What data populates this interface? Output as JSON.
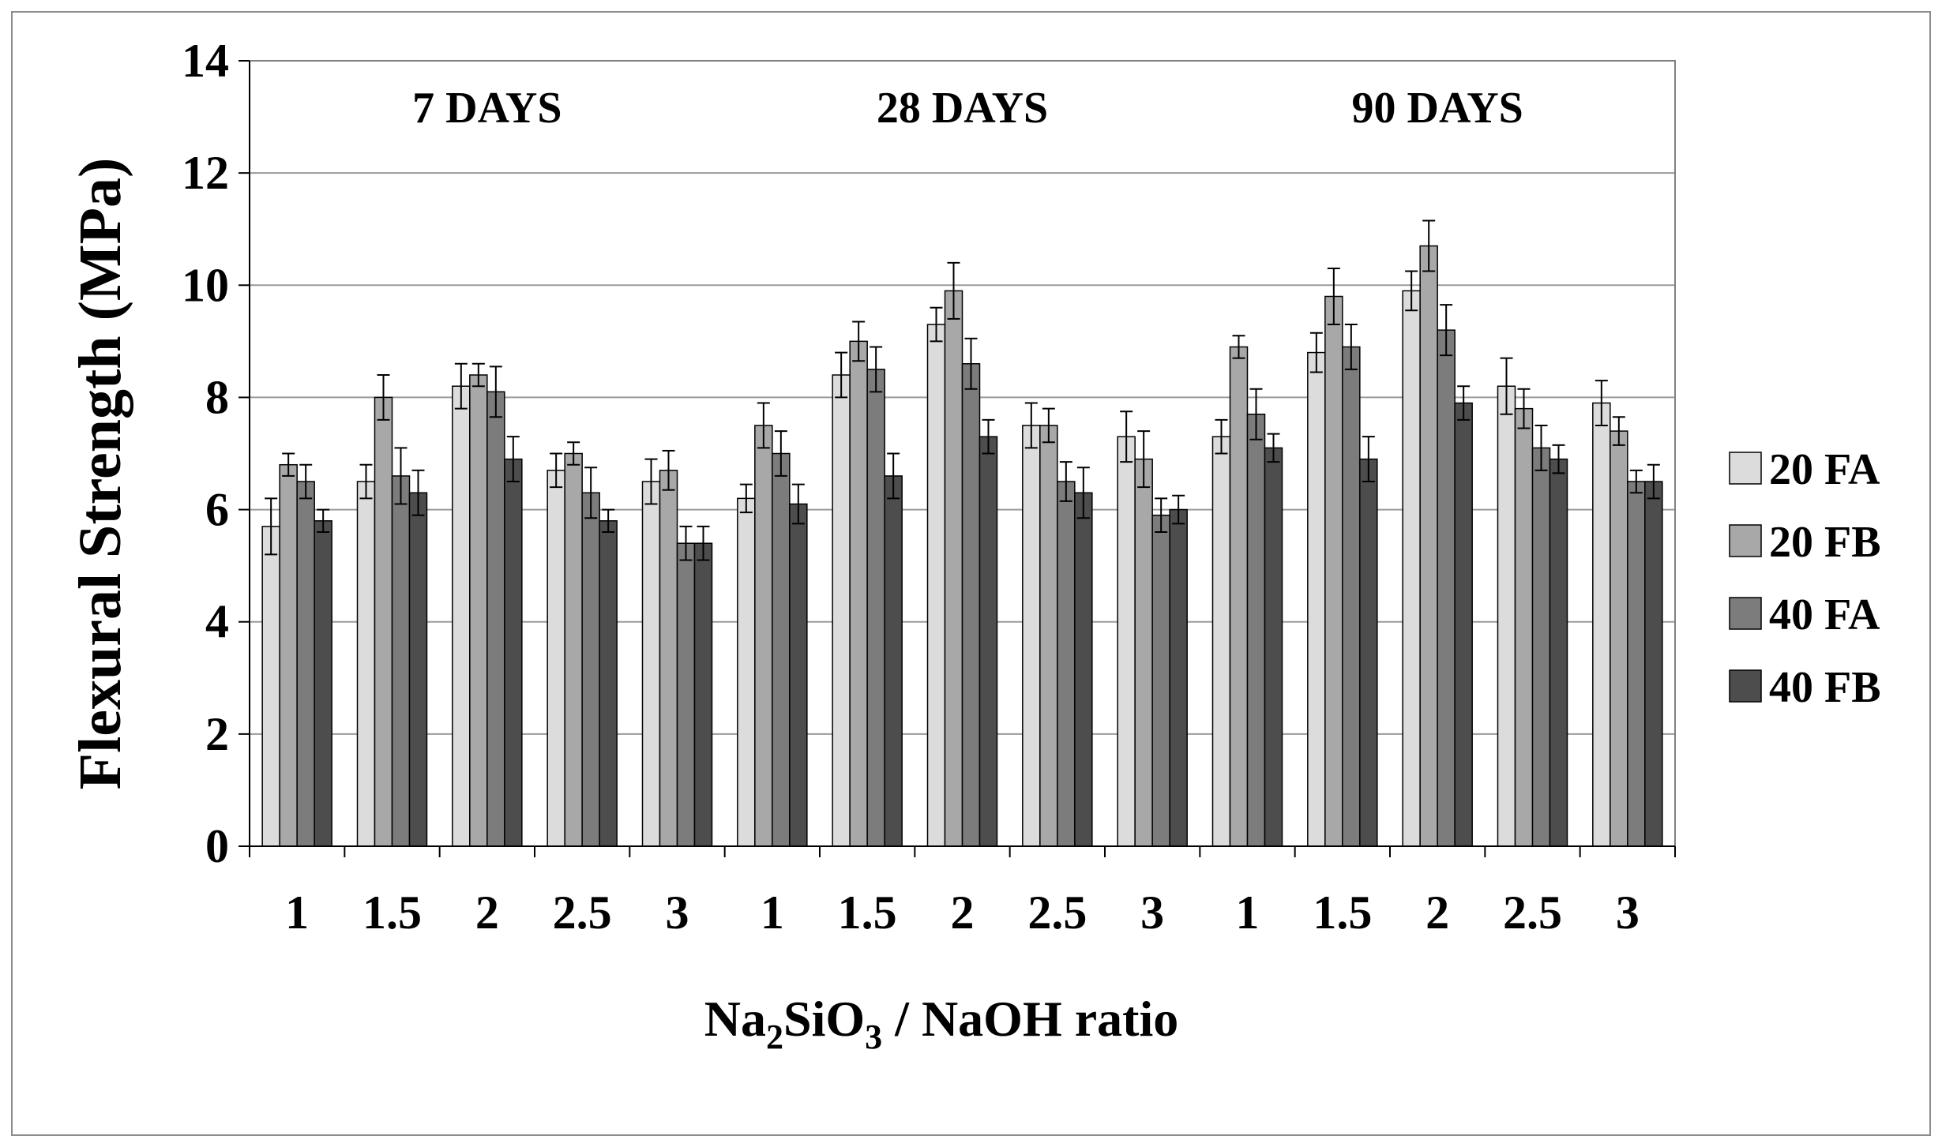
{
  "chart_data": {
    "type": "bar",
    "ylabel": "Flexural Strength (MPa)",
    "xlabel": {
      "parts": [
        "Na",
        "2",
        "SiO",
        "3",
        " / NaOH ratio"
      ]
    },
    "ylim": [
      0,
      14
    ],
    "yticks": [
      0,
      2,
      4,
      6,
      8,
      10,
      12,
      14
    ],
    "grid": true,
    "legend_position": "right",
    "groups": [
      {
        "label": "7 DAYS",
        "categories": [
          "1",
          "1.5",
          "2",
          "2.5",
          "3"
        ]
      },
      {
        "label": "28 DAYS",
        "categories": [
          "1",
          "1.5",
          "2",
          "2.5",
          "3"
        ]
      },
      {
        "label": "90 DAYS",
        "categories": [
          "1",
          "1.5",
          "2",
          "2.5",
          "3"
        ]
      }
    ],
    "series": [
      {
        "name": "20 FA",
        "color": "#dcdcdc",
        "values": [
          5.7,
          6.5,
          8.2,
          6.7,
          6.5,
          6.2,
          8.4,
          9.3,
          7.5,
          7.3,
          7.3,
          8.8,
          9.9,
          8.2,
          7.9
        ],
        "errors": [
          0.5,
          0.3,
          0.4,
          0.3,
          0.4,
          0.25,
          0.4,
          0.3,
          0.4,
          0.45,
          0.3,
          0.35,
          0.35,
          0.5,
          0.4
        ]
      },
      {
        "name": "20 FB",
        "color": "#a8a8a8",
        "values": [
          6.8,
          8.0,
          8.4,
          7.0,
          6.7,
          7.5,
          9.0,
          9.9,
          7.5,
          6.9,
          8.9,
          9.8,
          10.7,
          7.8,
          7.4
        ],
        "errors": [
          0.2,
          0.4,
          0.2,
          0.2,
          0.35,
          0.4,
          0.35,
          0.5,
          0.3,
          0.5,
          0.2,
          0.5,
          0.45,
          0.35,
          0.25
        ]
      },
      {
        "name": "40 FA",
        "color": "#7c7c7c",
        "values": [
          6.5,
          6.6,
          8.1,
          6.3,
          5.4,
          7.0,
          8.5,
          8.6,
          6.5,
          5.9,
          7.7,
          8.9,
          9.2,
          7.1,
          6.5
        ],
        "errors": [
          0.3,
          0.5,
          0.45,
          0.45,
          0.3,
          0.4,
          0.4,
          0.45,
          0.35,
          0.3,
          0.45,
          0.4,
          0.45,
          0.4,
          0.2
        ]
      },
      {
        "name": "40 FB",
        "color": "#4d4d4d",
        "values": [
          5.8,
          6.3,
          6.9,
          5.8,
          5.4,
          6.1,
          6.6,
          7.3,
          6.3,
          6.0,
          7.1,
          6.9,
          7.9,
          6.9,
          6.5
        ],
        "errors": [
          0.2,
          0.4,
          0.4,
          0.2,
          0.3,
          0.35,
          0.4,
          0.3,
          0.45,
          0.25,
          0.25,
          0.4,
          0.3,
          0.25,
          0.3
        ]
      }
    ]
  }
}
